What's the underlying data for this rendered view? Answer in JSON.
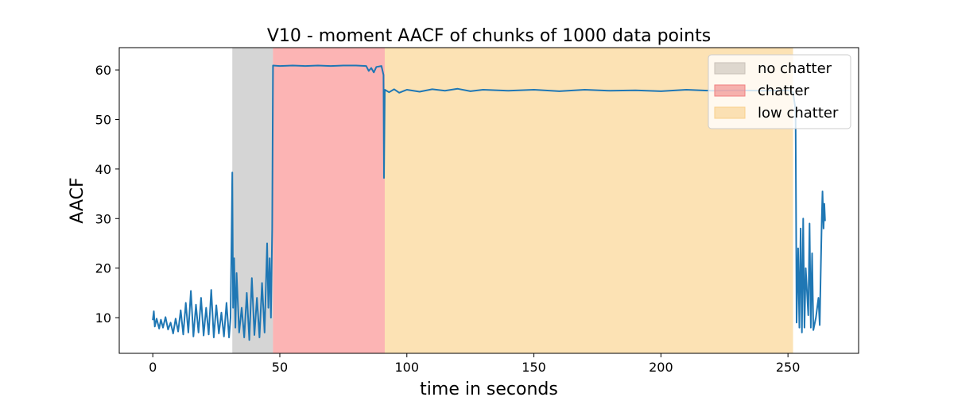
{
  "chart_data": {
    "type": "line",
    "title": "V10 - moment AACF of chunks of 1000 data points",
    "xlabel": "time in seconds",
    "ylabel": "AACF",
    "xlim": [
      -13.2,
      277.8
    ],
    "ylim": [
      2.8,
      64.5
    ],
    "xticks": [
      0,
      50,
      100,
      150,
      200,
      250
    ],
    "yticks": [
      10,
      20,
      30,
      40,
      50,
      60
    ],
    "grid": false,
    "legend_position": "top-right",
    "regions": [
      {
        "name": "no chatter",
        "x0": 31.3,
        "x1": 47.3,
        "color": "#bfbfbf",
        "legend_color": "#c8c0b8"
      },
      {
        "name": "chatter",
        "x0": 47.3,
        "x1": 91.3,
        "color": "#fb8c8c",
        "legend_color": "#f08080"
      },
      {
        "name": "low chatter",
        "x0": 91.3,
        "x1": 252.0,
        "color": "#fbd28c",
        "legend_color": "#f8cf8a"
      }
    ],
    "series": [
      {
        "line_color": "#1f77b4",
        "points": [
          [
            0,
            9.5
          ],
          [
            0.4,
            11.3
          ],
          [
            0.8,
            8.2
          ],
          [
            1.5,
            9.8
          ],
          [
            2.5,
            7.8
          ],
          [
            3.2,
            9.6
          ],
          [
            4.0,
            8.0
          ],
          [
            5.0,
            10.1
          ],
          [
            6.0,
            7.6
          ],
          [
            7.0,
            9.0
          ],
          [
            8.0,
            6.8
          ],
          [
            9.0,
            9.8
          ],
          [
            10.0,
            7.2
          ],
          [
            11.0,
            11.5
          ],
          [
            12.0,
            6.6
          ],
          [
            13.0,
            13.0
          ],
          [
            14.0,
            7.0
          ],
          [
            15.0,
            15.4
          ],
          [
            16.0,
            6.2
          ],
          [
            17.0,
            12.6
          ],
          [
            18.0,
            7.0
          ],
          [
            19.0,
            14.0
          ],
          [
            20.0,
            6.4
          ],
          [
            21.0,
            12.0
          ],
          [
            22.0,
            6.6
          ],
          [
            23.0,
            15.6
          ],
          [
            24.0,
            6.0
          ],
          [
            25.0,
            12.5
          ],
          [
            26.0,
            6.8
          ],
          [
            27.0,
            11.0
          ],
          [
            28.0,
            6.2
          ],
          [
            29.0,
            13.0
          ],
          [
            30.0,
            6.0
          ],
          [
            30.6,
            10.0
          ],
          [
            31.0,
            26.5
          ],
          [
            31.3,
            39.3
          ],
          [
            31.6,
            12.0
          ],
          [
            32.0,
            22.0
          ],
          [
            32.5,
            8.0
          ],
          [
            33.0,
            19.0
          ],
          [
            34.0,
            7.0
          ],
          [
            35.0,
            12.0
          ],
          [
            36.0,
            6.0
          ],
          [
            37.0,
            15.0
          ],
          [
            38.0,
            5.5
          ],
          [
            39.0,
            18.0
          ],
          [
            40.0,
            6.5
          ],
          [
            41.0,
            14.0
          ],
          [
            42.0,
            6.0
          ],
          [
            43.0,
            17.0
          ],
          [
            44.0,
            7.0
          ],
          [
            45.0,
            25.0
          ],
          [
            45.5,
            12.0
          ],
          [
            46.0,
            22.0
          ],
          [
            46.5,
            10.0
          ],
          [
            47.0,
            28.0
          ],
          [
            47.3,
            60.9
          ],
          [
            50.0,
            60.8
          ],
          [
            55.0,
            60.9
          ],
          [
            60.0,
            60.8
          ],
          [
            65.0,
            60.9
          ],
          [
            70.0,
            60.8
          ],
          [
            75.0,
            60.9
          ],
          [
            80.0,
            60.9
          ],
          [
            84.0,
            60.8
          ],
          [
            85.0,
            59.8
          ],
          [
            86.0,
            60.4
          ],
          [
            87.0,
            59.5
          ],
          [
            88.0,
            60.6
          ],
          [
            90.0,
            60.8
          ],
          [
            90.8,
            59.0
          ],
          [
            91.0,
            38.2
          ],
          [
            91.3,
            56.0
          ],
          [
            93.0,
            55.5
          ],
          [
            95.0,
            56.1
          ],
          [
            97.0,
            55.4
          ],
          [
            100.0,
            56.0
          ],
          [
            105.0,
            55.6
          ],
          [
            110.0,
            56.1
          ],
          [
            115.0,
            55.8
          ],
          [
            120.0,
            56.2
          ],
          [
            125.0,
            55.7
          ],
          [
            130.0,
            56.0
          ],
          [
            140.0,
            55.8
          ],
          [
            150.0,
            56.0
          ],
          [
            160.0,
            55.7
          ],
          [
            170.0,
            56.0
          ],
          [
            180.0,
            55.8
          ],
          [
            190.0,
            55.9
          ],
          [
            200.0,
            55.7
          ],
          [
            210.0,
            56.0
          ],
          [
            220.0,
            55.8
          ],
          [
            230.0,
            55.9
          ],
          [
            240.0,
            55.8
          ],
          [
            250.0,
            55.9
          ],
          [
            252.0,
            55.5
          ],
          [
            253.0,
            52.0
          ],
          [
            253.4,
            9.0
          ],
          [
            254.0,
            24.0
          ],
          [
            254.5,
            8.0
          ],
          [
            255.0,
            28.0
          ],
          [
            255.5,
            7.0
          ],
          [
            256.0,
            30.0
          ],
          [
            256.5,
            8.0
          ],
          [
            257.0,
            20.0
          ],
          [
            258.0,
            10.5
          ],
          [
            258.5,
            29.0
          ],
          [
            259.0,
            8.0
          ],
          [
            259.5,
            23.0
          ],
          [
            260.0,
            7.5
          ],
          [
            261.0,
            10.0
          ],
          [
            262.0,
            14.0
          ],
          [
            262.5,
            8.5
          ],
          [
            263.0,
            22.0
          ],
          [
            263.3,
            30.0
          ],
          [
            263.6,
            35.5
          ],
          [
            264.0,
            28.0
          ],
          [
            264.3,
            33.0
          ],
          [
            264.6,
            29.5
          ]
        ]
      }
    ]
  }
}
